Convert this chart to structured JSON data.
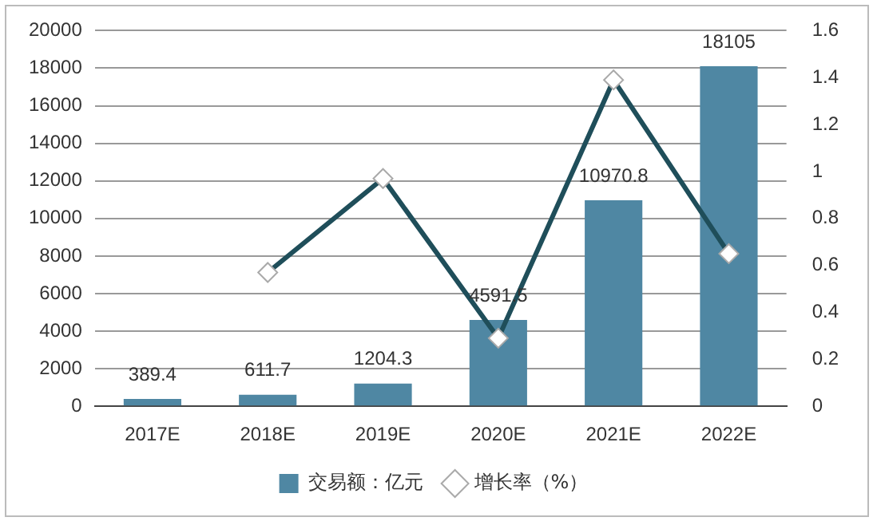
{
  "chart_data": {
    "type": "bar",
    "categories": [
      "2017E",
      "2018E",
      "2019E",
      "2020E",
      "2021E",
      "2022E"
    ],
    "series": [
      {
        "name": "交易额：亿元",
        "color": "#4f87a3",
        "values": [
          389.4,
          611.7,
          1204.3,
          4591.5,
          10970.8,
          18105
        ],
        "value_labels": [
          "389.4",
          "611.7",
          "1204.3",
          "4591.5",
          "10970.8",
          "18105"
        ]
      },
      {
        "name": "增长率（%）",
        "type": "line",
        "axis": "y2",
        "color": "#1f4e5a",
        "values": [
          null,
          0.57,
          0.97,
          0.29,
          1.39,
          0.65
        ]
      }
    ],
    "ylim": [
      0,
      20000
    ],
    "yticks": [
      0,
      2000,
      4000,
      6000,
      8000,
      10000,
      12000,
      14000,
      16000,
      18000,
      20000
    ],
    "y2lim": [
      0,
      1.6
    ],
    "y2ticks": [
      0,
      0.2,
      0.4,
      0.6,
      0.8,
      1,
      1.2,
      1.4,
      1.6
    ],
    "grid": "y",
    "legend": "bottom",
    "marker": "diamond",
    "line_style": "solid"
  }
}
